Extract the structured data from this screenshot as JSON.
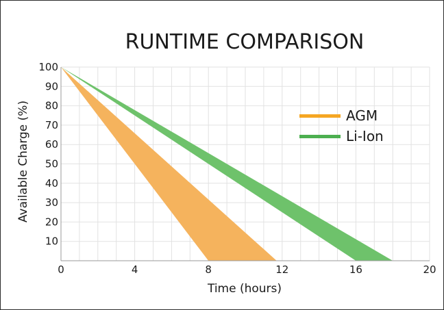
{
  "chart_data": {
    "type": "area",
    "title": "RUNTIME COMPARISON",
    "xlabel": "Time (hours)",
    "ylabel": "Available Charge (%)",
    "xlim": [
      0,
      20
    ],
    "ylim": [
      0,
      100
    ],
    "x_ticks": [
      0,
      4,
      8,
      12,
      16,
      20
    ],
    "y_ticks": [
      10,
      20,
      30,
      40,
      50,
      60,
      70,
      80,
      90,
      100
    ],
    "grid": true,
    "legend_position": "right",
    "series": [
      {
        "name": "AGM",
        "color": "#f5a623",
        "fill_color": "#f5b35d",
        "band": {
          "start": {
            "x": 0,
            "y": 100
          },
          "lower_end": {
            "x": 8,
            "y": 0
          },
          "upper_end": {
            "x": 11.7,
            "y": 0
          }
        }
      },
      {
        "name": "Li-Ion",
        "color": "#4caf50",
        "fill_color": "#6ec26b",
        "band": {
          "start": {
            "x": 0,
            "y": 100
          },
          "lower_end": {
            "x": 16,
            "y": 0
          },
          "upper_end": {
            "x": 18,
            "y": 0
          }
        }
      }
    ]
  }
}
